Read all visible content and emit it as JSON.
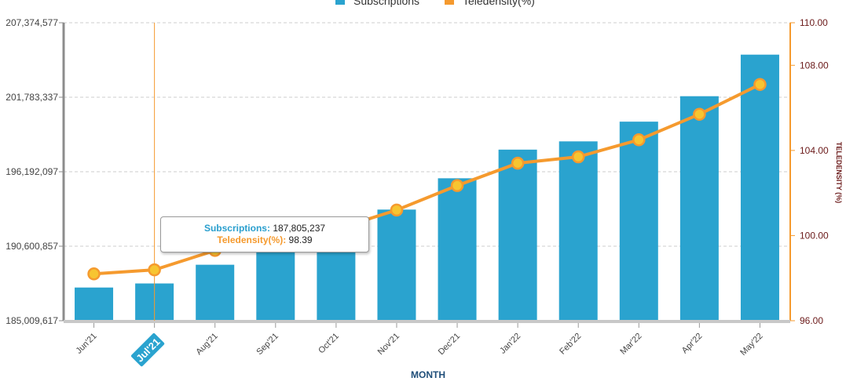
{
  "chart_data": {
    "type": "bar",
    "categories": [
      "Jun'21",
      "Jul'21",
      "Aug'21",
      "Sep'21",
      "Oct'21",
      "Nov'21",
      "Dec'21",
      "Jan'22",
      "Feb'22",
      "Mar'22",
      "Apr'22",
      "May'22"
    ],
    "series": [
      {
        "name": "Subscriptions",
        "type": "bar",
        "axis": "left",
        "color": "#2aa3cf",
        "values": [
          187500000,
          187805237,
          189210000,
          190400000,
          190410000,
          193350000,
          195700000,
          197850000,
          198470000,
          199950000,
          201860000,
          204980000
        ]
      },
      {
        "name": "Teledensity(%)",
        "type": "line",
        "axis": "right",
        "color": "#f59a2e",
        "values": [
          98.2,
          98.39,
          99.3,
          100.05,
          100.3,
          101.2,
          102.35,
          103.4,
          103.7,
          104.5,
          105.7,
          107.1
        ]
      }
    ],
    "y_left": {
      "ticks": [
        "185,009,617",
        "190,600,857",
        "196,192,097",
        "201,783,337",
        "207,374,577"
      ],
      "range": [
        185009617,
        207374577
      ]
    },
    "y_right": {
      "ticks": [
        "96.00",
        "100.00",
        "104.00",
        "108.00",
        "110.00"
      ],
      "range": [
        96,
        110
      ],
      "label": "TELEDENSITY (%)"
    },
    "xlabel": "MONTH",
    "grid": true,
    "legend_position": "top-center",
    "highlighted_category": "Jul'21",
    "tooltip": {
      "subscriptions_label": "Subscriptions:",
      "subscriptions_value": "187,805,237",
      "teledensity_label": "Teledensity(%):",
      "teledensity_value": "98.39"
    }
  }
}
